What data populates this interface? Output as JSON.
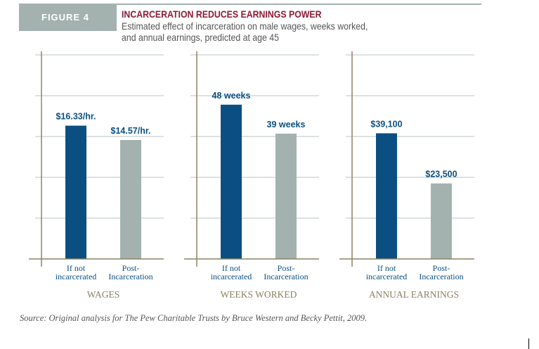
{
  "figure_label": "FIGURE 4",
  "title": "INCARCERATION REDUCES EARNINGS POWER",
  "subtitle_line1": "Estimated effect of incarceration on male wages, weeks worked,",
  "subtitle_line2": "and annual earnings, predicted at age 45",
  "source": "Source: Original analysis for The Pew Charitable Trusts by Bruce Western and Becky Pettit, 2009.",
  "colors": {
    "not_incarcerated": "#0b4f82",
    "post_incarceration": "#a3b2ae",
    "axis": "#8b8466",
    "grid": "#b9c6c4",
    "title": "#8b1a35",
    "panel_title": "#8a8260"
  },
  "chart_data": [
    {
      "type": "bar",
      "title": "WAGES",
      "categories": [
        "If not incarcerated",
        "Post-Incarceration"
      ],
      "category_lines": [
        [
          "If not",
          "incarcerated"
        ],
        [
          "Post-",
          "Incarceration"
        ]
      ],
      "values": [
        16.33,
        14.57
      ],
      "labels": [
        "$16.33/hr.",
        "$14.57/hr."
      ],
      "ylim": [
        0,
        25
      ],
      "grid": true
    },
    {
      "type": "bar",
      "title": "WEEKS WORKED",
      "categories": [
        "If not incarcerated",
        "Post-Incarceration"
      ],
      "category_lines": [
        [
          "If not",
          "incarcerated"
        ],
        [
          "Post-",
          "Incarceration"
        ]
      ],
      "values": [
        48,
        39
      ],
      "labels": [
        "48 weeks",
        "39 weeks"
      ],
      "ylim": [
        0,
        63.5
      ],
      "grid": true
    },
    {
      "type": "bar",
      "title": "ANNUAL EARNINGS",
      "categories": [
        "If not incarcerated",
        "Post-Incarceration"
      ],
      "category_lines": [
        [
          "If not",
          "incarcerated"
        ],
        [
          "Post-",
          "Incarceration"
        ]
      ],
      "values": [
        39100,
        23500
      ],
      "labels": [
        "$39,100",
        "$23,500"
      ],
      "ylim": [
        0,
        63500
      ],
      "grid": true
    }
  ]
}
